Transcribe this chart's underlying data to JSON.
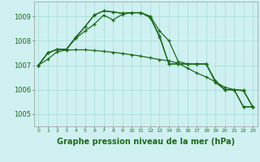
{
  "background_color": "#cff0f0",
  "plot_bg_color": "#cff0f0",
  "grid_color": "#aadddd",
  "line_color": "#1a6b1a",
  "xlabel": "Graphe pression niveau de la mer (hPa)",
  "xlabel_fontsize": 7,
  "xlim": [
    -0.5,
    23.5
  ],
  "ylim": [
    1004.5,
    1009.6
  ],
  "yticks": [
    1005,
    1006,
    1007,
    1008,
    1009
  ],
  "xticks": [
    0,
    1,
    2,
    3,
    4,
    5,
    6,
    7,
    8,
    9,
    10,
    11,
    12,
    13,
    14,
    15,
    16,
    17,
    18,
    19,
    20,
    21,
    22,
    23
  ],
  "s1": [
    1007.0,
    1007.25,
    1007.55,
    1007.62,
    1007.63,
    1007.63,
    1007.6,
    1007.57,
    1007.53,
    1007.48,
    1007.43,
    1007.37,
    1007.3,
    1007.23,
    1007.18,
    1007.08,
    1006.88,
    1006.68,
    1006.52,
    1006.32,
    1006.1,
    1006.0,
    1005.98,
    1005.3
  ],
  "s2": [
    1007.0,
    1007.5,
    1007.65,
    1007.65,
    1008.1,
    1008.4,
    1008.68,
    1009.05,
    1008.85,
    1009.08,
    1009.15,
    1009.15,
    1009.0,
    1008.4,
    1008.0,
    1007.15,
    1007.05,
    1007.05,
    1007.05,
    1006.35,
    1006.0,
    1006.0,
    1005.95,
    1005.3
  ],
  "s3": [
    1007.0,
    1007.5,
    1007.65,
    1007.65,
    1008.12,
    1008.58,
    1009.05,
    1009.22,
    1009.18,
    1009.12,
    1009.15,
    1009.15,
    1008.95,
    1008.2,
    1007.05,
    1007.05,
    1007.05,
    1007.05,
    1007.05,
    1006.35,
    1006.0,
    1006.0,
    1005.3,
    1005.3
  ],
  "s4": [
    1007.0,
    1007.5,
    1007.65,
    1007.65,
    1008.15,
    1008.58,
    1009.06,
    1009.22,
    1009.18,
    1009.12,
    1009.15,
    1009.15,
    1008.95,
    1008.15,
    1007.05,
    1007.05,
    1007.05,
    1007.05,
    1007.05,
    1006.3,
    1006.0,
    1006.0,
    1005.3,
    1005.3
  ]
}
